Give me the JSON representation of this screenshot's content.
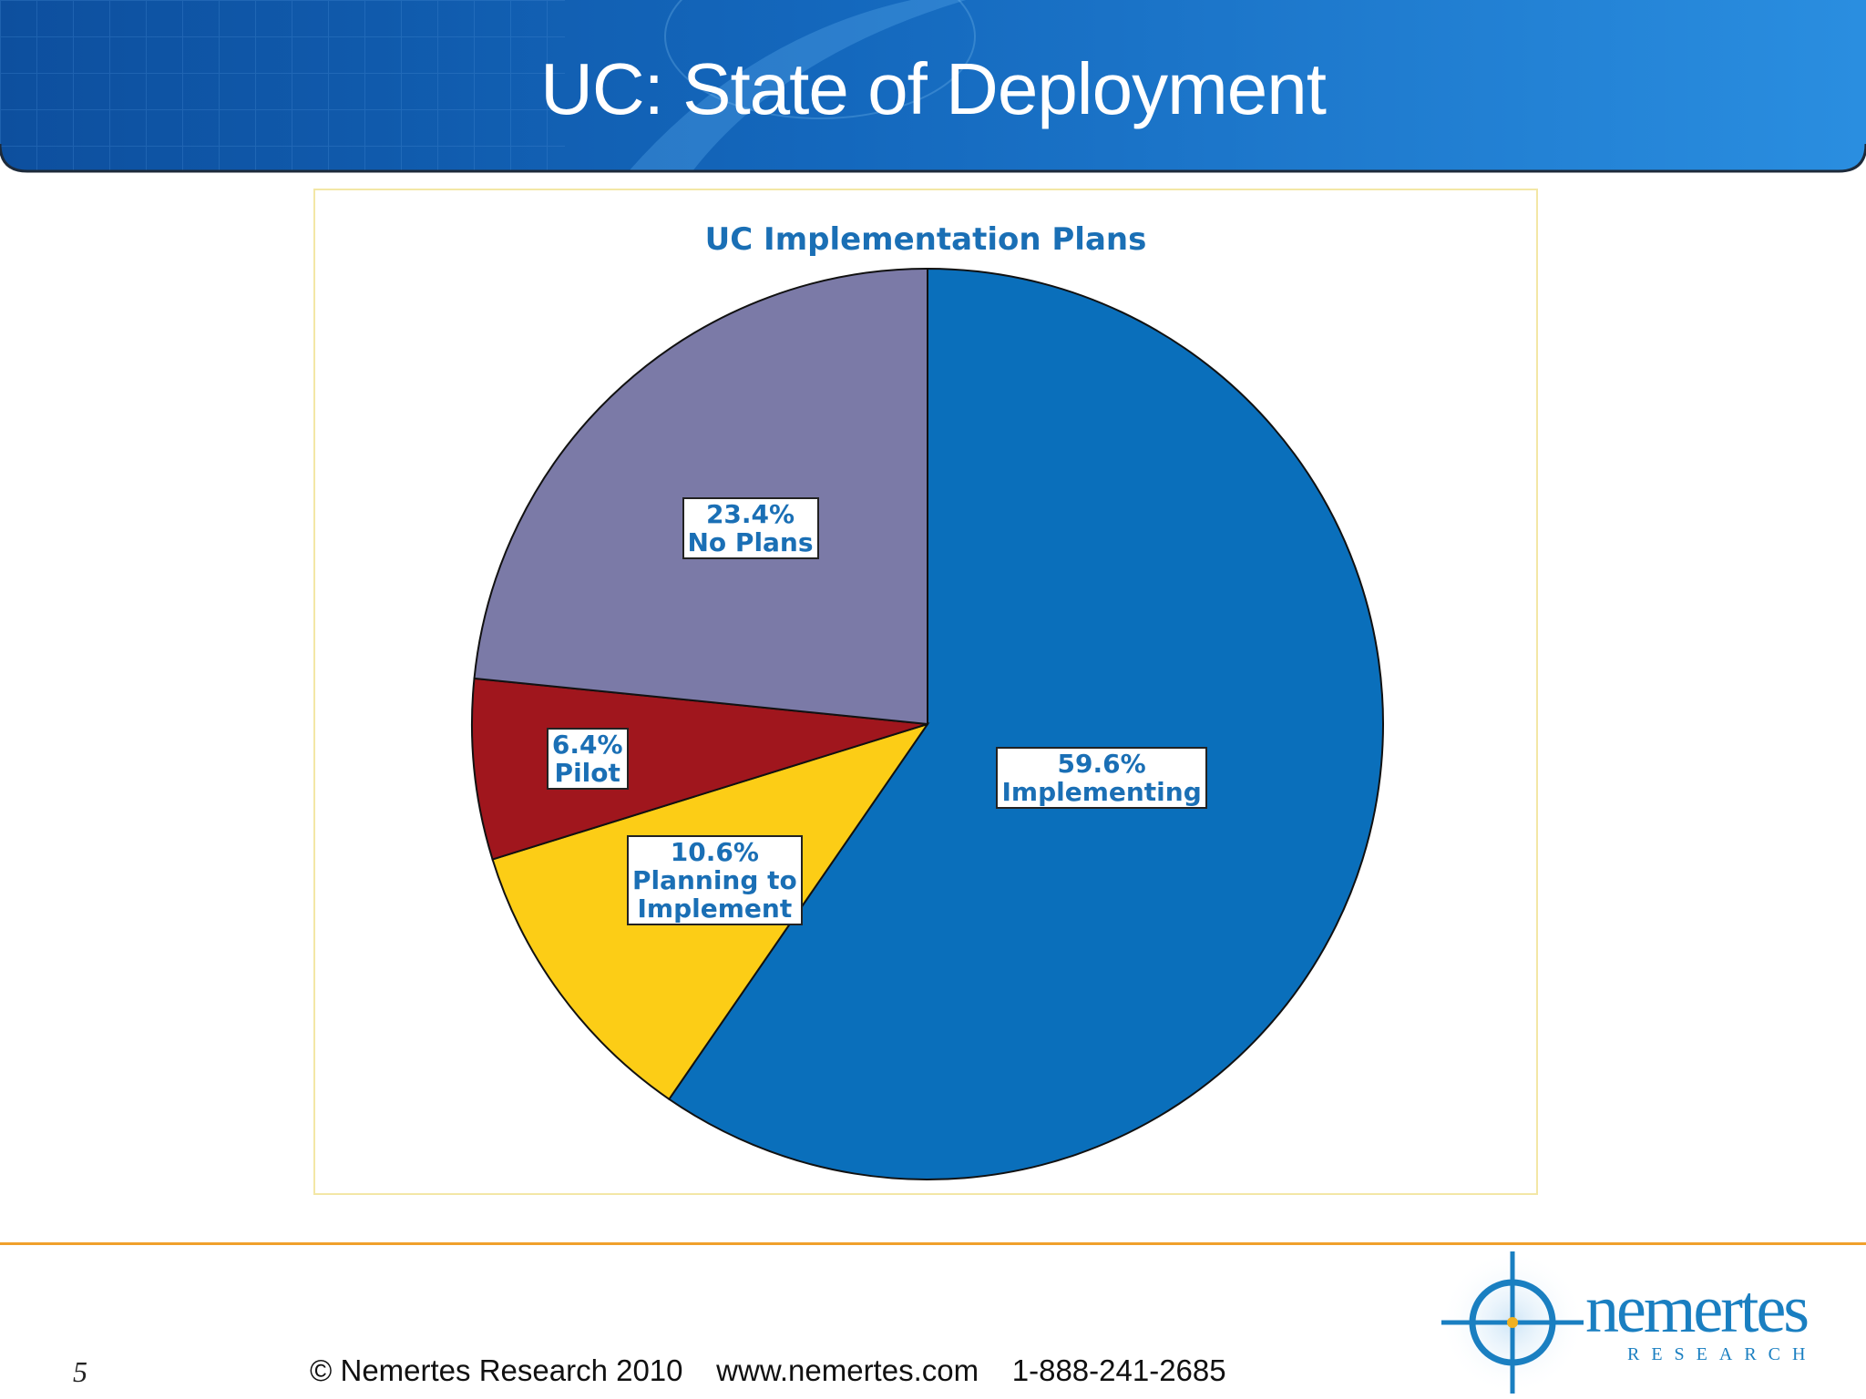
{
  "slide": {
    "title": "UC: State of Deployment",
    "page_number": "5",
    "footer": "© Nemertes Research 2010    www.nemertes.com    1-888-241-2685"
  },
  "logo": {
    "name": "nemertes",
    "subtitle": "RESEARCH",
    "icon": "crosshair-target-icon",
    "color": "#1a7fc1"
  },
  "colors": {
    "banner": "#1262b4",
    "accent_line": "#f0a02c",
    "chart_title": "#1a6fb5"
  },
  "chart_data": {
    "type": "pie",
    "title": "UC Implementation Plans",
    "start": "12 o'clock",
    "direction": "clockwise",
    "slices": [
      {
        "label": "59.6%\nImplementing",
        "category": "Implementing",
        "value": 59.6,
        "color": "#0a6fbb"
      },
      {
        "label": "10.6%\nPlanning to\nImplement",
        "category": "Planning to Implement",
        "value": 10.6,
        "color": "#fccd16"
      },
      {
        "label": "6.4%\nPilot",
        "category": "Pilot",
        "value": 6.4,
        "color": "#a0161d"
      },
      {
        "label": "23.4%\nNo Plans",
        "category": "No Plans",
        "value": 23.4,
        "color": "#7b7aa7"
      }
    ]
  }
}
